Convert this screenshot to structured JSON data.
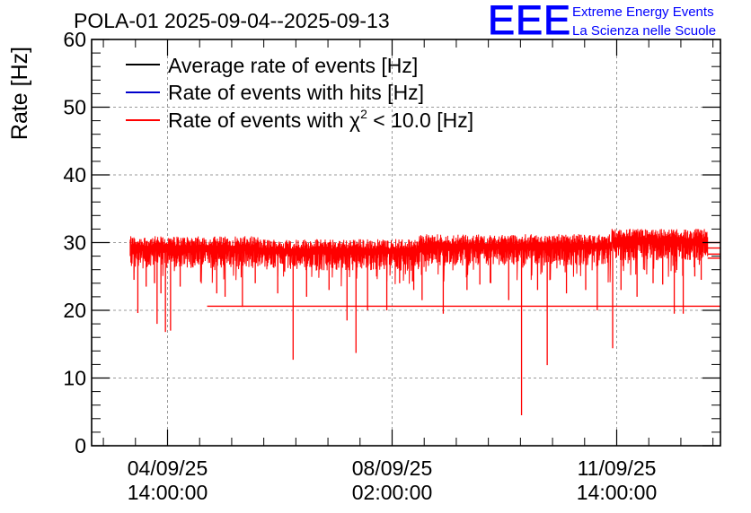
{
  "chart_data": {
    "type": "line",
    "title": "POLA-01 2025-09-04--2025-09-13",
    "ylabel": "Rate [Hz]",
    "xlabel": "",
    "ylim": [
      0,
      60
    ],
    "yticks": [
      0,
      10,
      20,
      30,
      40,
      50,
      60
    ],
    "grid": true,
    "x_unit": "days since 2025-09-04 00:00",
    "xlim": [
      -0.6,
      9.2
    ],
    "xticks": [
      {
        "value": 0.583,
        "date": "04/09/25",
        "time": "14:00:00"
      },
      {
        "value": 4.083,
        "date": "08/09/25",
        "time": "02:00:00"
      },
      {
        "value": 7.583,
        "date": "11/09/25",
        "time": "14:00:00"
      }
    ],
    "legend": [
      {
        "label_prefix": "Average rate of events [Hz]",
        "label_suffix": "",
        "color": "#000000"
      },
      {
        "label_prefix": "Rate of events with hits [Hz]",
        "label_suffix": "",
        "color": "#0000cc"
      },
      {
        "label_prefix": "Rate of events with χ",
        "sup": "2",
        "label_suffix": " < 10.0 [Hz]",
        "color": "#ff0000"
      }
    ],
    "series": {
      "name": "Rate of events with χ² < 10.0 [Hz]",
      "color": "#ff0000",
      "x_start": 0.0,
      "x_end": 9.0,
      "segments": [
        {
          "x_end": 2.0,
          "base": 29.2
        },
        {
          "x_end": 4.5,
          "base": 28.8
        },
        {
          "x_end": 7.5,
          "base": 29.5
        },
        {
          "x_end": 9.0,
          "base": 30.3
        }
      ],
      "band": 1.6,
      "spikes": [
        {
          "x": 0.06,
          "y": 24.5
        },
        {
          "x": 0.12,
          "y": 19.6
        },
        {
          "x": 0.25,
          "y": 23.5
        },
        {
          "x": 0.38,
          "y": 24.0
        },
        {
          "x": 0.42,
          "y": 18.0
        },
        {
          "x": 0.48,
          "y": 22.5
        },
        {
          "x": 0.55,
          "y": 16.8
        },
        {
          "x": 0.63,
          "y": 17.0
        },
        {
          "x": 0.78,
          "y": 23.5
        },
        {
          "x": 1.1,
          "y": 24.2
        },
        {
          "x": 1.35,
          "y": 22.5
        },
        {
          "x": 1.48,
          "y": 22.0
        },
        {
          "x": 1.75,
          "y": 20.5
        },
        {
          "x": 1.95,
          "y": 24.0
        },
        {
          "x": 2.3,
          "y": 22.5
        },
        {
          "x": 2.54,
          "y": 12.7
        },
        {
          "x": 2.75,
          "y": 22.0
        },
        {
          "x": 3.1,
          "y": 23.0
        },
        {
          "x": 3.38,
          "y": 18.5
        },
        {
          "x": 3.52,
          "y": 13.7
        },
        {
          "x": 3.7,
          "y": 20.0
        },
        {
          "x": 4.0,
          "y": 20.0
        },
        {
          "x": 4.2,
          "y": 24.0
        },
        {
          "x": 4.42,
          "y": 23.0
        },
        {
          "x": 4.55,
          "y": 21.5
        },
        {
          "x": 4.88,
          "y": 19.5
        },
        {
          "x": 5.25,
          "y": 23.0
        },
        {
          "x": 5.45,
          "y": 23.8
        },
        {
          "x": 5.62,
          "y": 24.0
        },
        {
          "x": 5.9,
          "y": 21.5
        },
        {
          "x": 6.1,
          "y": 4.5
        },
        {
          "x": 6.35,
          "y": 23.0
        },
        {
          "x": 6.5,
          "y": 11.9
        },
        {
          "x": 6.8,
          "y": 22.5
        },
        {
          "x": 7.1,
          "y": 23.0
        },
        {
          "x": 7.28,
          "y": 20.0
        },
        {
          "x": 7.52,
          "y": 14.4
        },
        {
          "x": 7.65,
          "y": 23.0
        },
        {
          "x": 7.9,
          "y": 22.0
        },
        {
          "x": 8.15,
          "y": 24.0
        },
        {
          "x": 8.3,
          "y": 23.8
        },
        {
          "x": 8.48,
          "y": 19.5
        },
        {
          "x": 8.62,
          "y": 19.5
        },
        {
          "x": 8.8,
          "y": 25.0
        },
        {
          "x": 8.9,
          "y": 24.5
        }
      ],
      "flat_lines": [
        {
          "x_from": 1.2,
          "y": 20.6
        },
        {
          "x_from": 9.0,
          "y": 27.7
        },
        {
          "x_from": 9.0,
          "y": 28.3
        },
        {
          "x_from": 9.0,
          "y": 29.2
        },
        {
          "x_from": 9.0,
          "y": 30.0
        }
      ]
    }
  },
  "branding": {
    "logo_text": "EEE",
    "line1": "Extreme Energy Events",
    "line2": "La Scienza nelle Scuole",
    "color": "#0000ff"
  }
}
